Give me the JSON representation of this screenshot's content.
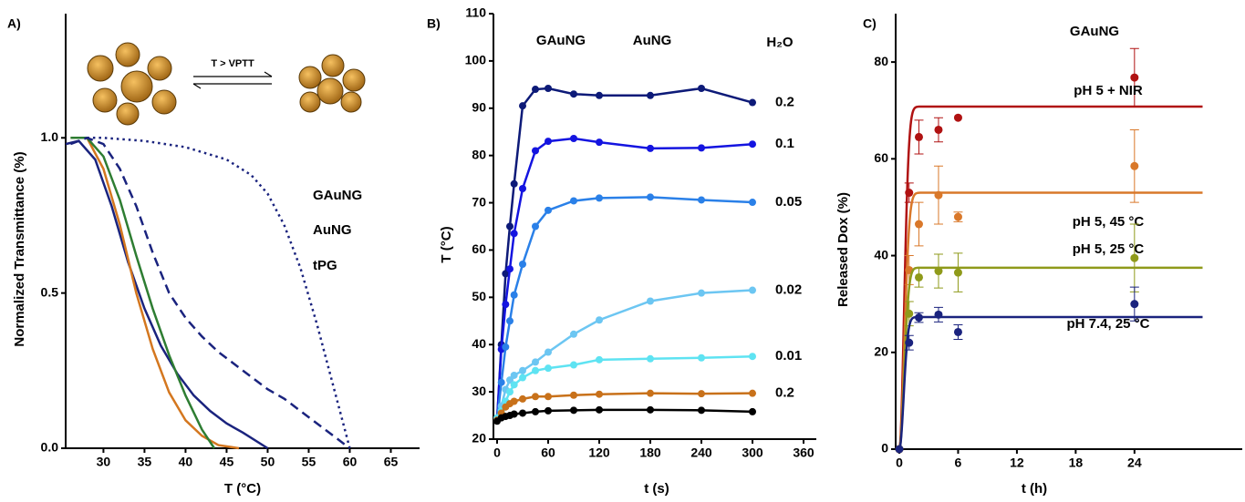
{
  "chart_data": [
    {
      "type": "line",
      "panel_label": "A)",
      "annotation": "T > VPTT",
      "x_label": "T (°C)",
      "y_label": "Normalized Transmittance (%)",
      "xlim": [
        25.4,
        68.5
      ],
      "ylim": [
        0,
        1.4
      ],
      "xticks": [
        30,
        35,
        40,
        45,
        50,
        55,
        60,
        65
      ],
      "yticks": [
        {
          "value": 0,
          "label": "0.0"
        },
        {
          "value": 0.5,
          "label": "0.5"
        },
        {
          "value": 1,
          "label": "1.0"
        }
      ],
      "series": [
        {
          "name": "GAuNG",
          "color": "#1a237e",
          "dash": "solid",
          "x": [
            25.4,
            27,
            29,
            31,
            33,
            35,
            37,
            39,
            41,
            43,
            45,
            47,
            50
          ],
          "values": [
            0.98,
            0.99,
            0.93,
            0.78,
            0.6,
            0.45,
            0.33,
            0.24,
            0.17,
            0.12,
            0.08,
            0.05,
            0
          ]
        },
        {
          "name": "AuNG",
          "color": "#d4771f",
          "dash": "solid",
          "x": [
            26,
            28,
            30,
            32,
            34,
            36,
            38,
            40,
            42,
            44,
            46.5
          ],
          "values": [
            1.0,
            1.0,
            0.9,
            0.72,
            0.5,
            0.32,
            0.18,
            0.09,
            0.04,
            0.01,
            0
          ]
        },
        {
          "name": "tPG",
          "color": "#2e7d32",
          "dash": "solid",
          "x": [
            26,
            28,
            30,
            32,
            34,
            36,
            38,
            40,
            42,
            43.5
          ],
          "values": [
            1.0,
            1.0,
            0.94,
            0.8,
            0.62,
            0.45,
            0.3,
            0.17,
            0.06,
            0
          ]
        },
        {
          "color": "#1a237e",
          "dash": "dashed",
          "x": [
            26,
            28,
            30,
            32,
            34,
            36,
            38,
            40,
            42,
            44,
            46,
            48,
            50,
            52,
            54,
            56,
            58,
            60
          ],
          "values": [
            0.98,
            1.0,
            0.98,
            0.9,
            0.78,
            0.63,
            0.5,
            0.42,
            0.36,
            0.31,
            0.27,
            0.23,
            0.19,
            0.16,
            0.12,
            0.08,
            0.04,
            0
          ]
        },
        {
          "color": "#1a237e",
          "dash": "dotted",
          "x": [
            28,
            30,
            35,
            40,
            45,
            48,
            50,
            52,
            54,
            56,
            58,
            59,
            60
          ],
          "values": [
            1.0,
            1.0,
            0.99,
            0.97,
            0.93,
            0.88,
            0.82,
            0.72,
            0.58,
            0.4,
            0.2,
            0.1,
            0
          ]
        }
      ]
    },
    {
      "type": "line",
      "panel_label": "B)",
      "x_label": "t (s)",
      "y_label": "T (°C)",
      "xlim": [
        0,
        375
      ],
      "ylim": [
        20,
        110
      ],
      "xticks": [
        0,
        60,
        120,
        180,
        240,
        300,
        360
      ],
      "yticks": [
        20,
        30,
        40,
        50,
        60,
        70,
        80,
        90,
        100,
        110
      ],
      "markers": true,
      "groups": [
        {
          "name": "GAuNG",
          "color": "gradient"
        },
        {
          "name": "AuNG",
          "color": "#c8711a"
        },
        {
          "name": "H₂O",
          "color": "#000000"
        }
      ],
      "x": [
        0,
        5,
        10,
        15,
        20,
        30,
        45,
        60,
        90,
        120,
        180,
        240,
        300
      ],
      "series": [
        {
          "name": "0.2",
          "color": "#0d1a78",
          "values": [
            24,
            40,
            55,
            65,
            74,
            90.5,
            94,
            94.2,
            93,
            92.7,
            92.7,
            94.2,
            91.2
          ]
        },
        {
          "name": "0.1",
          "color": "#1414e0",
          "values": [
            24,
            39,
            48.5,
            56,
            63.5,
            73,
            81,
            83,
            83.6,
            82.8,
            81.5,
            81.6,
            82.4
          ]
        },
        {
          "name": "0.05",
          "color": "#2a80e8",
          "values": [
            24,
            32,
            39.5,
            45,
            50.5,
            57,
            65,
            68.4,
            70.4,
            71,
            71.2,
            70.6,
            70.1
          ]
        },
        {
          "name": "0.02",
          "color": "#6cc6f2",
          "values": [
            24.5,
            27,
            30.5,
            32.5,
            33.5,
            34.5,
            36.3,
            38.4,
            42.2,
            45.2,
            49.2,
            50.9,
            51.5
          ]
        },
        {
          "name": "0.01",
          "color": "#5ee3f2",
          "values": [
            24.5,
            26,
            28,
            30,
            31.5,
            33,
            34.5,
            35,
            35.7,
            36.8,
            37,
            37.2,
            37.5
          ]
        },
        {
          "name": "0.2",
          "color": "#c8711a",
          "values": [
            24,
            25.5,
            26.8,
            27.5,
            28,
            28.5,
            29,
            29,
            29.3,
            29.5,
            29.7,
            29.6,
            29.7
          ]
        },
        {
          "color": "#000000",
          "values": [
            23.8,
            24.5,
            24.8,
            25,
            25.3,
            25.5,
            25.8,
            26,
            26.1,
            26.2,
            26.2,
            26.1,
            25.8
          ]
        }
      ]
    },
    {
      "type": "scatter",
      "panel_label": "C)",
      "title": "GAuNG",
      "x_label": "t (h)",
      "y_label": "Released Dox (%)",
      "xlim": [
        0,
        35
      ],
      "ylim": [
        0,
        90
      ],
      "xticks": [
        0,
        6,
        12,
        18,
        24
      ],
      "yticks": [
        0,
        20,
        40,
        60,
        80
      ],
      "x": [
        0,
        1,
        2,
        4,
        6,
        24
      ],
      "series": [
        {
          "name": "pH 5 + NIR",
          "color": "#b01212",
          "values": [
            0,
            53,
            64.5,
            66,
            68.5,
            76.8
          ],
          "errors": [
            0,
            2,
            3.5,
            2.5,
            0,
            6
          ],
          "fit": {
            "plateau": 70.8,
            "rate": 2.2
          }
        },
        {
          "name": "pH 5, 45 °C",
          "color": "#d9782a",
          "values": [
            0,
            37,
            46.5,
            52.5,
            48,
            58.5
          ],
          "errors": [
            0,
            3,
            4.5,
            6,
            1,
            7.5
          ],
          "fit": {
            "plateau": 53,
            "rate": 2.0
          }
        },
        {
          "name": "pH 5, 25 °C",
          "color": "#8f9a1a",
          "values": [
            0,
            28,
            35.5,
            36.8,
            36.5,
            39.5
          ],
          "errors": [
            0,
            2.5,
            2,
            3.5,
            4,
            7
          ],
          "fit": {
            "plateau": 37.5,
            "rate": 2.2
          }
        },
        {
          "name": "pH 7.4, 25 °C",
          "color": "#1a237e",
          "values": [
            0,
            22,
            27.2,
            27.8,
            24.2,
            30
          ],
          "errors": [
            0,
            1.5,
            1,
            1.5,
            1.5,
            3.5
          ],
          "fit": {
            "plateau": 27.3,
            "rate": 2.6
          }
        }
      ]
    }
  ]
}
